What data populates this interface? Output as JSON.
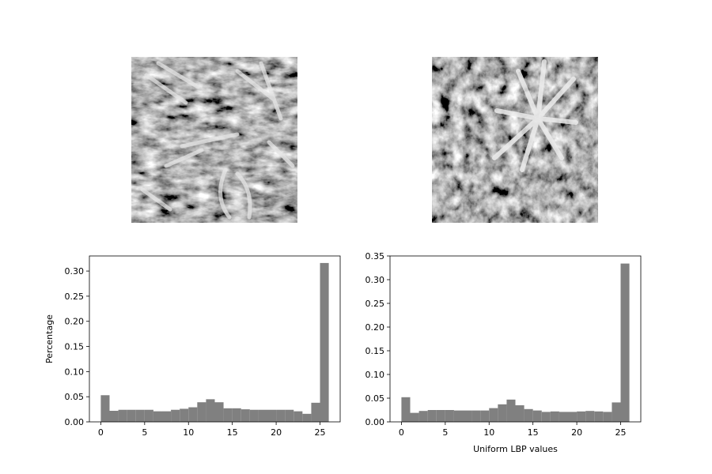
{
  "chart_data": [
    {
      "type": "image",
      "subject": "grayscale texture patch (leafy foliage)"
    },
    {
      "type": "image",
      "subject": "grayscale texture patch (star-shaped plant among foliage)"
    },
    {
      "type": "bar",
      "x": [
        0,
        1,
        2,
        3,
        4,
        5,
        6,
        7,
        8,
        9,
        10,
        11,
        12,
        13,
        14,
        15,
        16,
        17,
        18,
        19,
        20,
        21,
        22,
        23,
        24,
        25
      ],
      "values": [
        0.053,
        0.022,
        0.024,
        0.024,
        0.024,
        0.024,
        0.021,
        0.021,
        0.024,
        0.026,
        0.029,
        0.039,
        0.045,
        0.039,
        0.027,
        0.027,
        0.025,
        0.024,
        0.024,
        0.024,
        0.024,
        0.024,
        0.021,
        0.016,
        0.038,
        0.316
      ],
      "xlim": [
        -1.3,
        27.3
      ],
      "ylim": [
        0,
        0.33
      ],
      "xticks": [
        "0",
        "5",
        "10",
        "15",
        "20",
        "25"
      ],
      "yticks": [
        "0.00",
        "0.05",
        "0.10",
        "0.15",
        "0.20",
        "0.25",
        "0.30"
      ],
      "xlabel": "",
      "ylabel": "Percentage",
      "color": "#808080"
    },
    {
      "type": "bar",
      "x": [
        0,
        1,
        2,
        3,
        4,
        5,
        6,
        7,
        8,
        9,
        10,
        11,
        12,
        13,
        14,
        15,
        16,
        17,
        18,
        19,
        20,
        21,
        22,
        23,
        24,
        25
      ],
      "values": [
        0.052,
        0.019,
        0.023,
        0.025,
        0.025,
        0.025,
        0.024,
        0.024,
        0.024,
        0.024,
        0.029,
        0.037,
        0.047,
        0.035,
        0.027,
        0.024,
        0.021,
        0.022,
        0.021,
        0.021,
        0.022,
        0.023,
        0.022,
        0.021,
        0.041,
        0.334
      ],
      "xlim": [
        -1.3,
        27.3
      ],
      "ylim": [
        0,
        0.35
      ],
      "xticks": [
        "0",
        "5",
        "10",
        "15",
        "20",
        "25"
      ],
      "yticks": [
        "0.00",
        "0.05",
        "0.10",
        "0.15",
        "0.20",
        "0.25",
        "0.30",
        "0.35"
      ],
      "xlabel": "Uniform LBP values",
      "ylabel": "",
      "color": "#808080"
    }
  ]
}
